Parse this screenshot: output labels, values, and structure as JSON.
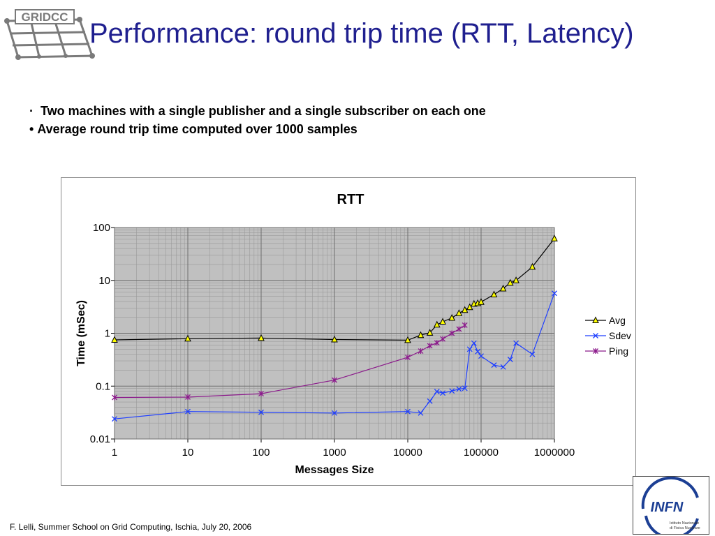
{
  "slide": {
    "logo_text": "GRIDCC",
    "title": "Performance: round trip time (RTT, Latency)",
    "bullets": [
      "Two machines with a single publisher and a single subscriber on each one",
      "Average round trip time computed over 1000 samples"
    ],
    "footer": "F. Lelli, Summer School on Grid Computing, Ischia, July 20, 2006",
    "infn_logo": {
      "name": "INFN",
      "line1": "Istituto Nazionale",
      "line2": "di Fisica Nucleare"
    }
  },
  "chart_data": {
    "type": "line",
    "title": "RTT",
    "xlabel": "Messages Size",
    "ylabel": "Time (mSec)",
    "x_scale": "log",
    "y_scale": "log",
    "xlim": [
      1,
      1000000
    ],
    "ylim": [
      0.01,
      100
    ],
    "x_ticks": [
      "1",
      "10",
      "100",
      "1000",
      "10000",
      "100000",
      "1000000"
    ],
    "y_ticks": [
      "0.01",
      "0.1",
      "1",
      "10",
      "100"
    ],
    "grid": true,
    "plot_background": "#c0c0c0",
    "legend_position": "right",
    "series": [
      {
        "name": "Avg",
        "color": "#000000",
        "marker": "triangle",
        "marker_color": "#ffff00",
        "x": [
          1,
          10,
          100,
          1000,
          10000,
          15000,
          20000,
          25000,
          30000,
          40000,
          50000,
          60000,
          70000,
          80000,
          90000,
          100000,
          150000,
          200000,
          250000,
          300000,
          500000,
          1000000
        ],
        "y": [
          0.75,
          0.79,
          0.81,
          0.76,
          0.74,
          0.92,
          1.02,
          1.45,
          1.65,
          1.95,
          2.4,
          2.75,
          3.1,
          3.6,
          3.7,
          3.9,
          5.4,
          7.0,
          9.0,
          10.0,
          18.0,
          62.0
        ]
      },
      {
        "name": "Sdev",
        "color": "#1f3fff",
        "marker": "x",
        "x": [
          1,
          10,
          100,
          1000,
          10000,
          15000,
          20000,
          25000,
          30000,
          40000,
          50000,
          60000,
          70000,
          80000,
          90000,
          100000,
          150000,
          200000,
          250000,
          300000,
          500000,
          1000000
        ],
        "y": [
          0.024,
          0.033,
          0.032,
          0.031,
          0.033,
          0.031,
          0.052,
          0.079,
          0.074,
          0.081,
          0.088,
          0.091,
          0.5,
          0.65,
          0.45,
          0.37,
          0.25,
          0.23,
          0.32,
          0.65,
          0.4,
          5.7
        ]
      },
      {
        "name": "Ping",
        "color": "#8b1a8b",
        "marker": "star",
        "x": [
          1,
          10,
          100,
          1000,
          10000,
          15000,
          20000,
          25000,
          30000,
          40000,
          50000,
          60000
        ],
        "y": [
          0.061,
          0.062,
          0.072,
          0.13,
          0.35,
          0.46,
          0.58,
          0.66,
          0.78,
          1.0,
          1.2,
          1.42
        ]
      }
    ]
  }
}
